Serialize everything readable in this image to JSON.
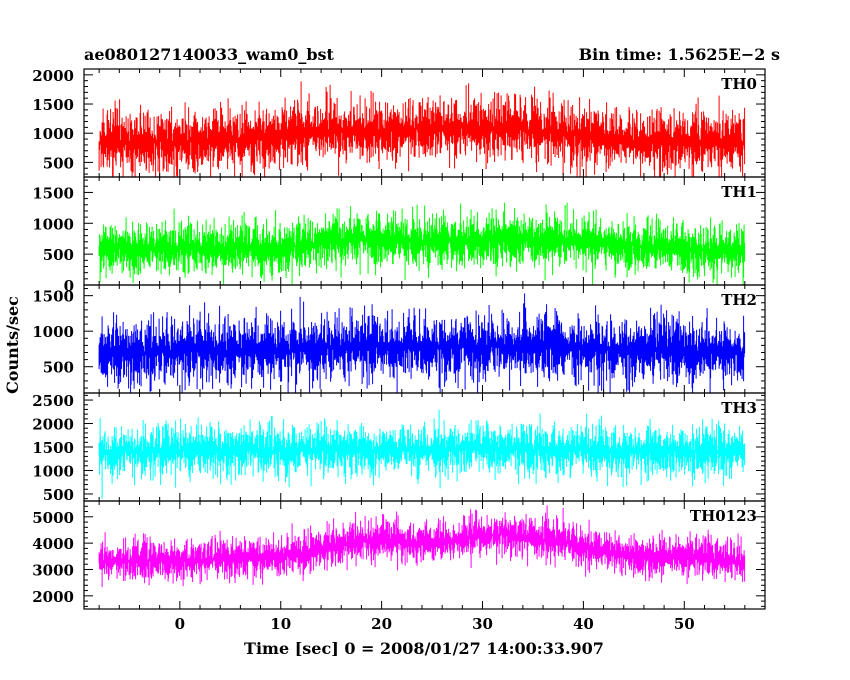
{
  "chart_data": {
    "type": "line",
    "title": "ae080127140033_wam0_bst",
    "bin_time_label": "Bin time: 1.5625E−2 s",
    "xlabel": "Time [sec] 0 = 2008/01/27 14:00:33.907",
    "ylabel": "Counts/sec",
    "xlim": [
      -9.5,
      58
    ],
    "x_ticks": [
      0,
      10,
      20,
      30,
      40,
      50
    ],
    "x_tick_labels": [
      "0",
      "10",
      "20",
      "30",
      "40",
      "50"
    ],
    "x_range": [
      -8,
      56
    ],
    "panels": [
      {
        "name": "TH0",
        "color": "#ff0000",
        "ylim": [
          250,
          2100
        ],
        "y_ticks": [
          500,
          1000,
          1500,
          2000
        ],
        "y_tick_labels": [
          "500",
          "1000",
          "1500",
          "2000"
        ],
        "trend_x": [
          -8,
          0,
          8,
          12,
          20,
          27,
          33,
          38,
          45,
          50,
          56
        ],
        "trend_y": [
          850,
          870,
          900,
          1030,
          1050,
          1100,
          1080,
          1000,
          850,
          880,
          850
        ],
        "spread": 420
      },
      {
        "name": "TH1",
        "color": "#00ff00",
        "ylim": [
          0,
          1750
        ],
        "y_ticks": [
          0,
          500,
          1000,
          1500
        ],
        "y_tick_labels": [
          "0",
          "500",
          "1000",
          "1500"
        ],
        "trend_x": [
          -8,
          0,
          10,
          18,
          25,
          32,
          40,
          50,
          56
        ],
        "trend_y": [
          580,
          600,
          600,
          760,
          700,
          750,
          700,
          580,
          570
        ],
        "spread": 330
      },
      {
        "name": "TH2",
        "color": "#0000ff",
        "ylim": [
          130,
          1650
        ],
        "y_ticks": [
          500,
          1000,
          1500
        ],
        "y_tick_labels": [
          "500",
          "1000",
          "1500"
        ],
        "trend_x": [
          -8,
          0,
          10,
          18,
          25,
          32,
          40,
          50,
          56
        ],
        "trend_y": [
          700,
          720,
          730,
          800,
          760,
          800,
          760,
          720,
          700
        ],
        "spread": 370
      },
      {
        "name": "TH3",
        "color": "#00ffff",
        "ylim": [
          350,
          2650
        ],
        "y_ticks": [
          500,
          1000,
          1500,
          2000,
          2500
        ],
        "y_tick_labels": [
          "500",
          "1000",
          "1500",
          "2000",
          "2500"
        ],
        "trend_x": [
          -8,
          0,
          10,
          20,
          30,
          40,
          50,
          56
        ],
        "trend_y": [
          1400,
          1420,
          1430,
          1450,
          1460,
          1440,
          1420,
          1400
        ],
        "spread": 430
      },
      {
        "name": "TH0123",
        "color": "#ff00ff",
        "ylim": [
          1500,
          5600
        ],
        "y_ticks": [
          2000,
          3000,
          4000,
          5000
        ],
        "y_tick_labels": [
          "2000",
          "3000",
          "4000",
          "5000"
        ],
        "trend_x": [
          -8,
          0,
          10,
          18,
          25,
          32,
          38,
          45,
          50,
          56
        ],
        "trend_y": [
          3300,
          3350,
          3500,
          4100,
          4000,
          4350,
          4050,
          3500,
          3500,
          3300
        ],
        "spread": 620
      }
    ]
  }
}
